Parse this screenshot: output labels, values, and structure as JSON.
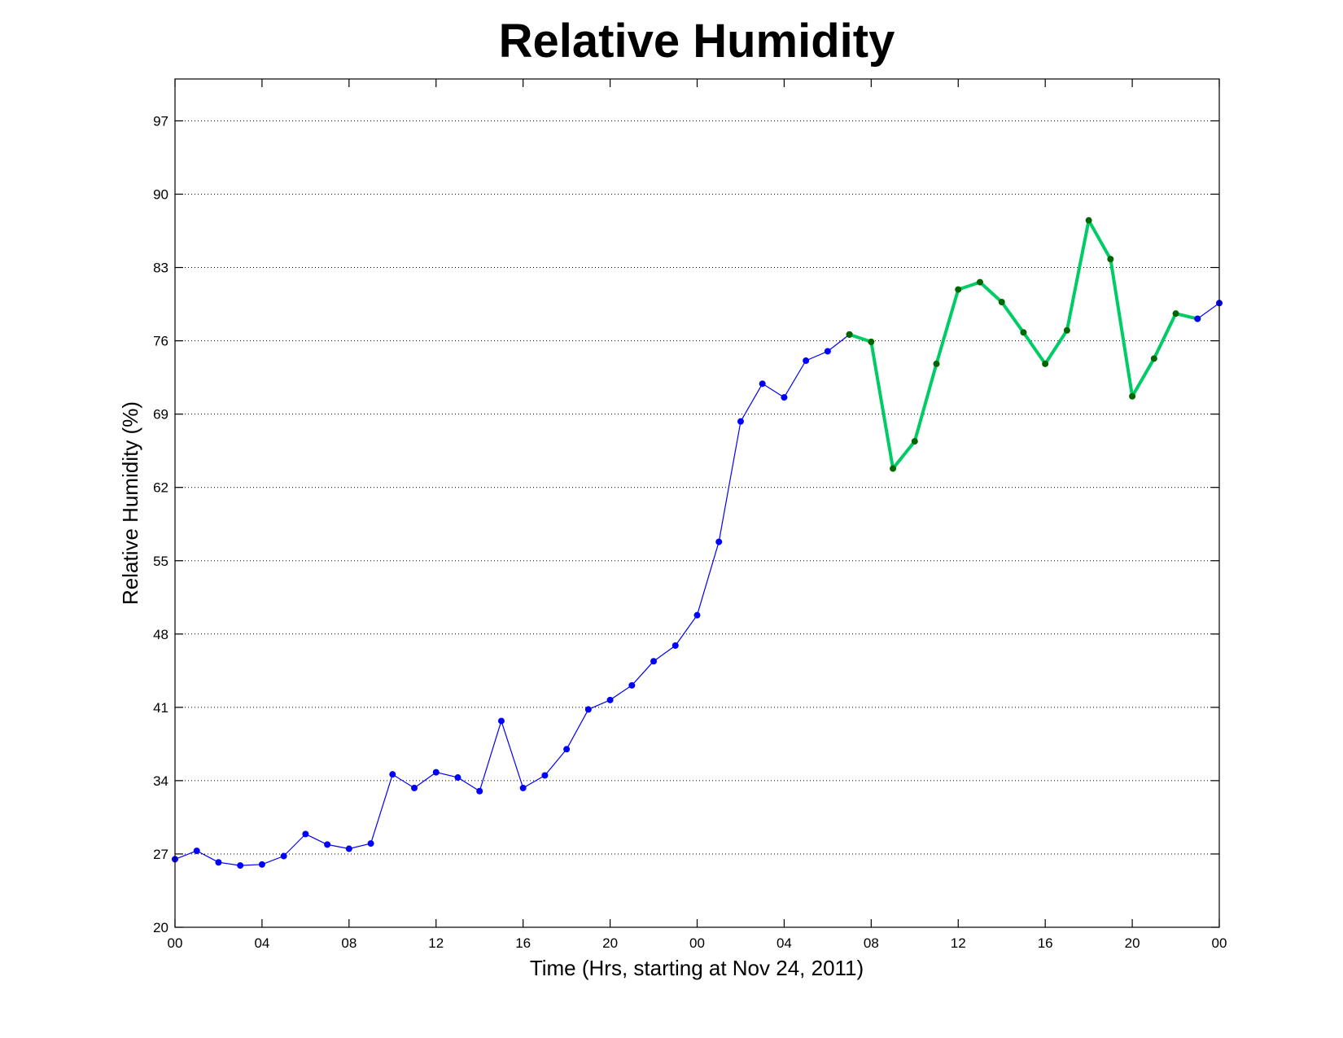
{
  "chart_data": {
    "type": "line",
    "title": "Relative Humidity",
    "xlabel": "Time (Hrs, starting at Nov 24, 2011)",
    "ylabel": "Relative Humidity (%)",
    "xlim": [
      0,
      48
    ],
    "ylim": [
      20,
      101
    ],
    "yticks": [
      20,
      27,
      34,
      41,
      48,
      55,
      62,
      69,
      76,
      83,
      90,
      97
    ],
    "xticks": [
      0,
      4,
      8,
      12,
      16,
      20,
      24,
      28,
      32,
      36,
      40,
      44,
      48
    ],
    "xtick_labels": [
      "00",
      "04",
      "08",
      "12",
      "16",
      "20",
      "00",
      "04",
      "08",
      "12",
      "16",
      "20",
      "00"
    ],
    "grid": "horizontal dotted",
    "series": [
      {
        "color": "#0000ff",
        "marker_color": "#0000ff",
        "x": [
          0,
          1,
          2,
          3,
          4,
          5,
          6,
          7,
          8,
          9,
          10,
          11,
          12,
          13,
          14,
          15,
          16,
          17,
          18,
          19,
          20,
          21,
          22,
          23,
          24,
          25,
          26,
          27,
          28,
          29,
          30,
          31
        ],
        "y": [
          26.5,
          27.3,
          26.2,
          25.9,
          26.0,
          26.8,
          28.9,
          27.9,
          27.5,
          28.0,
          34.6,
          33.3,
          34.8,
          34.3,
          33.0,
          39.7,
          33.3,
          34.5,
          37.0,
          40.8,
          41.7,
          43.1,
          45.4,
          46.9,
          49.8,
          56.8,
          68.3,
          71.9,
          70.6,
          74.1,
          75.0,
          76.6
        ]
      },
      {
        "color": "#00cc66",
        "marker_color": "#006600",
        "x": [
          31,
          32,
          33,
          34,
          35,
          36,
          37,
          38,
          39,
          40,
          41,
          42,
          43,
          44,
          45,
          46,
          47
        ],
        "y": [
          76.6,
          75.9,
          63.8,
          66.4,
          73.8,
          80.9,
          81.6,
          79.7,
          76.8,
          73.8,
          77.0,
          87.5,
          83.8,
          70.7,
          74.3,
          78.6,
          78.1
        ]
      },
      {
        "color": "#0000ff",
        "marker_color": "#0000ff",
        "x": [
          47,
          48
        ],
        "y": [
          78.1,
          79.6
        ]
      }
    ]
  }
}
